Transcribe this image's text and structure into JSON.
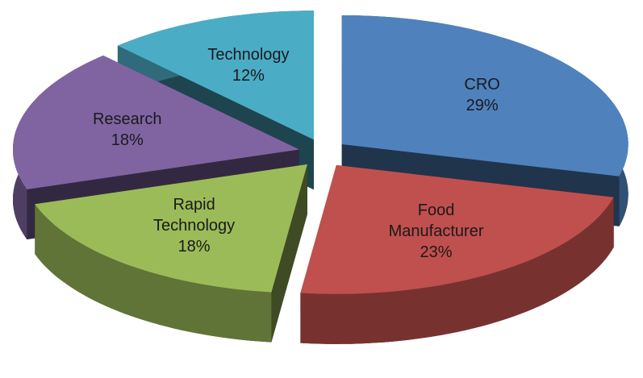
{
  "chart_data": {
    "type": "pie",
    "categories": [
      "CRO",
      "Food Manufacturer",
      "Rapid Technology",
      "Research",
      "Technology"
    ],
    "values": [
      29,
      23,
      18,
      18,
      12
    ],
    "value_labels": [
      "29%",
      "23%",
      "18%",
      "18%",
      "12%"
    ],
    "colors": [
      "#4f81bd",
      "#c0504d",
      "#9bbb59",
      "#8064a2",
      "#4bacc6"
    ]
  }
}
